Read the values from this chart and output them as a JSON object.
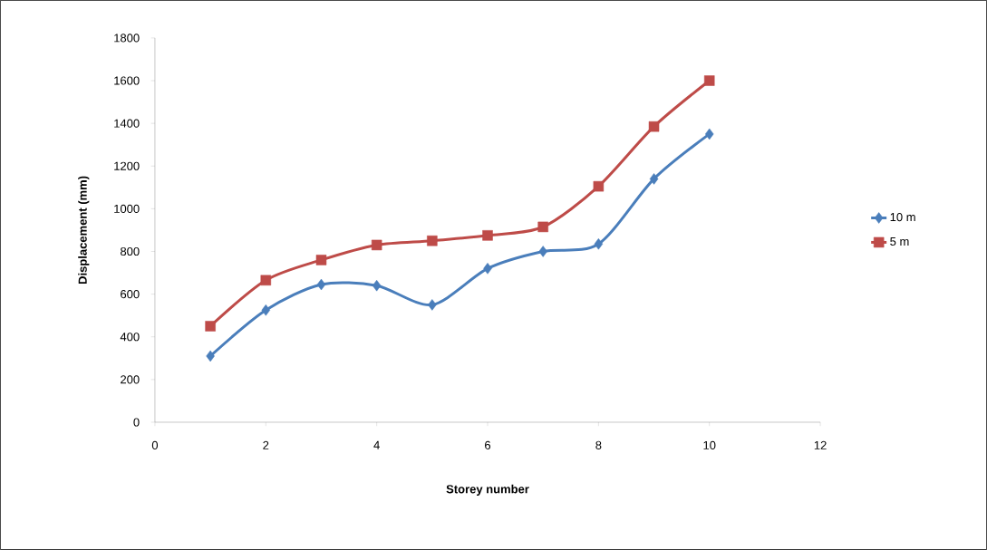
{
  "chart_data": {
    "type": "line",
    "xlabel": "Storey number",
    "ylabel": "Displacement (mm)",
    "x": [
      1,
      2,
      3,
      4,
      5,
      6,
      7,
      8,
      9,
      10
    ],
    "series": [
      {
        "name": "10 m",
        "color": "#4a7ebb",
        "marker": "diamond",
        "values": [
          310,
          525,
          645,
          640,
          550,
          720,
          800,
          835,
          1140,
          1350
        ]
      },
      {
        "name": "5 m",
        "color": "#be4b48",
        "marker": "square",
        "values": [
          450,
          665,
          760,
          830,
          850,
          875,
          915,
          1105,
          1385,
          1600
        ]
      }
    ],
    "xlim": [
      0,
      12
    ],
    "xticks": [
      0,
      2,
      4,
      6,
      8,
      10,
      12
    ],
    "ylim": [
      0,
      1800
    ],
    "yticks": [
      0,
      200,
      400,
      600,
      800,
      1000,
      1200,
      1400,
      1600,
      1800
    ],
    "grid": false,
    "legend": "right",
    "line_style": "solid"
  }
}
